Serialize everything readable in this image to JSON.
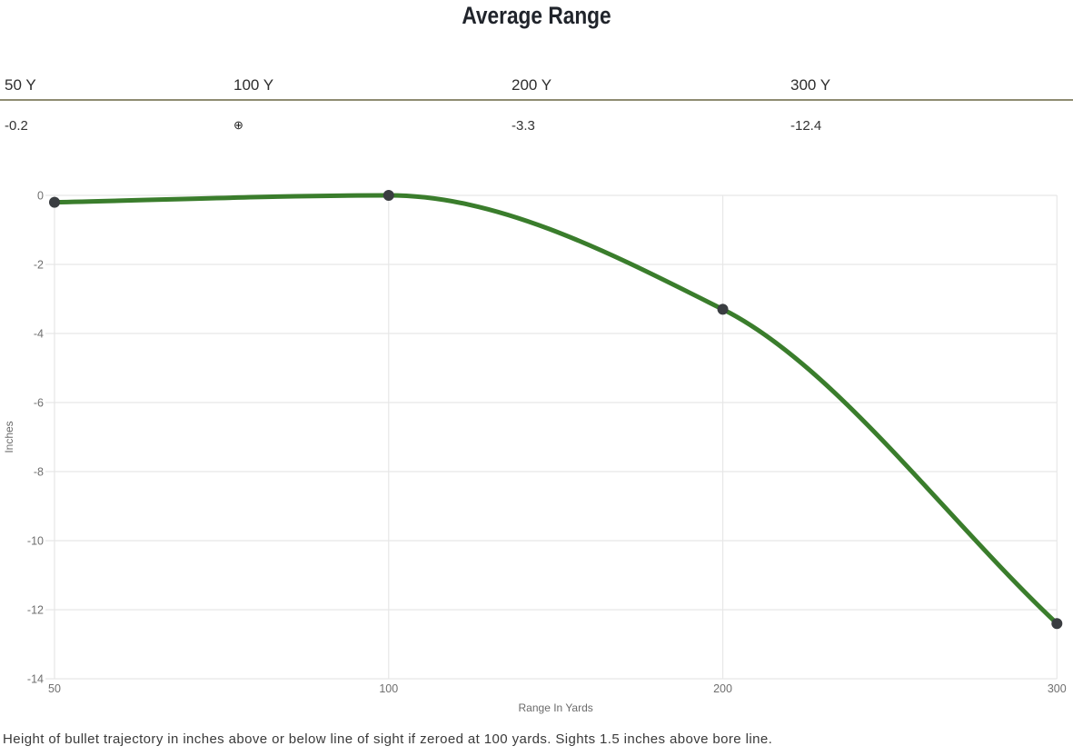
{
  "page": {
    "title": "Average Range",
    "footer_note": "Height of bullet trajectory in inches above or below line of sight if zeroed at 100 yards. Sights 1.5 inches above bore line."
  },
  "summary_table": {
    "divider_color": "#8f8c72",
    "columns": [
      {
        "label": "50 Y",
        "value": "-0.2"
      },
      {
        "label": "100 Y",
        "value": "⊕"
      },
      {
        "label": "200 Y",
        "value": "-3.3"
      },
      {
        "label": "300 Y",
        "value": "-12.4"
      }
    ]
  },
  "chart_data": {
    "type": "line",
    "title": "Average Range",
    "x": [
      50,
      100,
      200,
      300
    ],
    "x_tick_labels": [
      "50",
      "100",
      "200",
      "300"
    ],
    "values": [
      -0.2,
      0,
      -3.3,
      -12.4
    ],
    "series": [
      {
        "name": "Average Range",
        "values": [
          -0.2,
          0,
          -3.3,
          -12.4
        ]
      }
    ],
    "xlabel": "Range In Yards",
    "ylabel": "Inches",
    "ylim": [
      -14,
      0
    ],
    "y_ticks": [
      0,
      -2,
      -4,
      -6,
      -8,
      -10,
      -12,
      -14
    ],
    "axis_type": "category",
    "smoothing": "monotone",
    "grid": true,
    "legend": "none",
    "colors": {
      "line": "#3a7d2c",
      "point": "#3a3d41",
      "grid": "#e7e7e7",
      "tick_label": "#6f6f6f",
      "axis_title": "#6b6b6b"
    }
  }
}
